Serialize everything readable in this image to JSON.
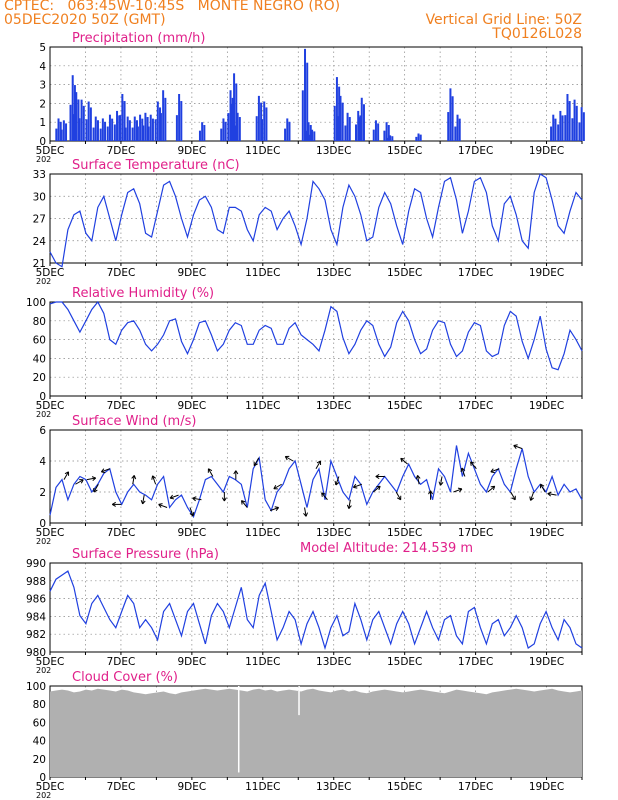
{
  "header": {
    "location": "CPTEC:   063:45W-10:45S   MONTE NEGRO (RO)",
    "date": "05DEC2020 50Z (GMT)",
    "grid_note": "Vertical Grid Line: 50Z",
    "code": "TQ0126L028"
  },
  "x_tick_labels": [
    "5DEC",
    "7DEC",
    "9DEC",
    "11DEC",
    "13DEC",
    "15DEC",
    "17DEC",
    "19DEC"
  ],
  "x_sub_label": "202",
  "colors": {
    "title": "#e0208a",
    "header": "#f08020",
    "line": "#2040e0",
    "cloud": "#b0b0b0",
    "wind_arrow": "#000000"
  },
  "chart_data": [
    {
      "type": "bar",
      "title": "Precipitation (mm/h)",
      "ylim": [
        0,
        5
      ],
      "yticks": [
        "0",
        "1",
        "2",
        "3",
        "4",
        "5"
      ],
      "peaks": [
        [
          0.15,
          1.2
        ],
        [
          0.3,
          1.1
        ],
        [
          0.55,
          3.5
        ],
        [
          0.65,
          2.6
        ],
        [
          0.8,
          2.2
        ],
        [
          1.0,
          2.1
        ],
        [
          1.2,
          1.3
        ],
        [
          1.4,
          1.2
        ],
        [
          1.6,
          1.4
        ],
        [
          1.8,
          1.6
        ],
        [
          1.95,
          2.5
        ],
        [
          2.1,
          1.3
        ],
        [
          2.3,
          1.3
        ],
        [
          2.45,
          1.4
        ],
        [
          2.6,
          1.5
        ],
        [
          2.75,
          1.4
        ],
        [
          2.95,
          2.1
        ],
        [
          3.1,
          2.7
        ],
        [
          3.55,
          2.5
        ],
        [
          4.2,
          1.0
        ],
        [
          4.8,
          1.2
        ],
        [
          5.0,
          2.7
        ],
        [
          5.1,
          3.6
        ],
        [
          5.2,
          1.5
        ],
        [
          5.8,
          2.4
        ],
        [
          5.95,
          2.1
        ],
        [
          6.6,
          1.2
        ],
        [
          7.1,
          4.9
        ],
        [
          7.2,
          1.0
        ],
        [
          7.3,
          0.6
        ],
        [
          8.0,
          3.4
        ],
        [
          8.1,
          2.4
        ],
        [
          8.3,
          1.5
        ],
        [
          8.6,
          1.6
        ],
        [
          8.7,
          2.3
        ],
        [
          9.1,
          1.1
        ],
        [
          9.4,
          1.0
        ],
        [
          9.5,
          0.3
        ],
        [
          10.3,
          0.4
        ],
        [
          11.2,
          2.8
        ],
        [
          11.4,
          1.4
        ],
        [
          14.1,
          1.4
        ],
        [
          14.3,
          1.6
        ],
        [
          14.5,
          2.5
        ],
        [
          14.7,
          2.2
        ],
        [
          14.9,
          1.8
        ]
      ],
      "xlim_days": [
        5,
        20
      ]
    },
    {
      "type": "line",
      "title": "Surface Temperature (nC)",
      "ylim": [
        21,
        33
      ],
      "yticks": [
        "21",
        "24",
        "27",
        "30",
        "33"
      ],
      "series": [
        {
          "values": [
            22.5,
            21.0,
            20.5,
            25.5,
            27.5,
            28.0,
            25.0,
            24.0,
            28.5,
            30.0,
            27.0,
            24.0,
            27.5,
            30.5,
            31.0,
            29.0,
            25.0,
            24.5,
            28.0,
            31.5,
            32.0,
            30.0,
            27.0,
            24.5,
            27.5,
            29.5,
            30.0,
            28.5,
            25.5,
            25.0,
            28.5,
            28.5,
            28.0,
            25.5,
            24.0,
            27.5,
            28.5,
            28.0,
            25.5,
            27.0,
            28.0,
            26.0,
            23.5,
            27.0,
            32.0,
            31.0,
            29.5,
            25.5,
            23.5,
            28.5,
            31.5,
            30.0,
            27.5,
            24.0,
            24.5,
            28.5,
            30.5,
            29.0,
            26.0,
            23.5,
            28.0,
            31.0,
            30.5,
            27.0,
            24.5,
            28.5,
            32.0,
            32.5,
            29.5,
            25.0,
            28.0,
            32.0,
            32.5,
            30.5,
            26.0,
            24.0,
            29.0,
            30.0,
            27.5,
            24.0,
            23.0,
            30.5,
            33.0,
            32.5,
            29.5,
            26.0,
            25.0,
            28.0,
            30.5,
            29.5
          ]
        }
      ]
    },
    {
      "type": "line",
      "title": "Relative Humidity (%)",
      "ylim": [
        0,
        100
      ],
      "yticks": [
        "0",
        "20",
        "40",
        "60",
        "80",
        "100"
      ],
      "series": [
        {
          "values": [
            98,
            100,
            100,
            92,
            80,
            68,
            80,
            92,
            100,
            88,
            60,
            55,
            70,
            78,
            80,
            70,
            55,
            48,
            55,
            65,
            80,
            82,
            58,
            45,
            60,
            78,
            80,
            65,
            48,
            55,
            70,
            78,
            75,
            55,
            55,
            70,
            75,
            72,
            55,
            55,
            72,
            78,
            65,
            60,
            55,
            48,
            70,
            95,
            90,
            62,
            45,
            55,
            70,
            80,
            75,
            55,
            42,
            52,
            78,
            90,
            80,
            60,
            45,
            50,
            70,
            80,
            78,
            55,
            42,
            48,
            68,
            78,
            75,
            48,
            42,
            45,
            75,
            90,
            85,
            58,
            40,
            60,
            85,
            50,
            30,
            28,
            45,
            70,
            60,
            48
          ]
        }
      ]
    },
    {
      "type": "line",
      "title": "Surface Wind (m/s)",
      "ylim": [
        0,
        6
      ],
      "yticks": [
        "0",
        "2",
        "4",
        "6"
      ],
      "series": [
        {
          "values": [
            0.5,
            2.3,
            2.8,
            1.5,
            2.5,
            3.0,
            2.8,
            2.0,
            2.5,
            3.2,
            3.5,
            2.0,
            1.2,
            2.0,
            2.5,
            2.0,
            1.8,
            1.5,
            2.5,
            3.0,
            1.0,
            1.5,
            1.8,
            1.0,
            0.4,
            1.5,
            2.8,
            3.0,
            2.5,
            2.0,
            3.0,
            2.8,
            2.5,
            1.0,
            3.5,
            4.2,
            1.5,
            0.8,
            2.0,
            2.5,
            3.5,
            4.0,
            2.5,
            1.0,
            2.8,
            3.5,
            1.5,
            4.0,
            3.0,
            2.0,
            1.5,
            3.0,
            2.5,
            1.2,
            2.0,
            2.5,
            3.0,
            2.5,
            2.0,
            3.0,
            3.8,
            3.0,
            2.5,
            2.8,
            1.5,
            3.5,
            3.0,
            2.0,
            5.0,
            3.0,
            4.5,
            3.5,
            2.5,
            2.0,
            3.0,
            3.5,
            2.5,
            2.0,
            3.5,
            4.8,
            3.0,
            2.0,
            2.5,
            2.0,
            3.0,
            1.8,
            2.5,
            2.0,
            2.2,
            1.5
          ]
        }
      ],
      "arrow_dirs_deg": [
        60,
        30,
        10,
        240,
        200,
        180,
        80,
        260,
        110,
        160,
        200,
        290,
        170,
        120,
        270,
        90,
        130,
        240,
        20,
        210,
        150,
        280,
        60,
        130,
        250,
        260,
        200,
        40,
        180,
        300,
        140,
        100,
        90,
        260,
        20,
        110,
        130,
        40,
        200,
        300,
        160,
        250,
        120,
        170
      ]
    },
    {
      "type": "line",
      "title": "Surface Pressure (hPa)",
      "annotation": "Model Altitude: 214.539 m",
      "ylim": [
        980,
        991
      ],
      "yticks": [
        "980",
        "982",
        "984",
        "986",
        "988",
        "990"
      ],
      "series": [
        {
          "values": [
            987.5,
            989.0,
            989.5,
            990.0,
            988.0,
            984.5,
            983.5,
            986.0,
            987.0,
            985.5,
            984.0,
            983.0,
            985.0,
            987.0,
            986.0,
            983.0,
            984.0,
            983.0,
            981.5,
            985.0,
            986.0,
            984.0,
            982.0,
            985.0,
            986.0,
            983.5,
            981.0,
            984.5,
            986.0,
            985.0,
            983.0,
            985.5,
            988.0,
            984.0,
            983.0,
            987.0,
            988.5,
            985.0,
            981.5,
            983.0,
            985.0,
            984.0,
            981.0,
            983.5,
            985.0,
            983.0,
            980.5,
            983.0,
            984.5,
            982.0,
            982.5,
            986.0,
            984.0,
            981.5,
            984.0,
            985.0,
            983.0,
            981.0,
            983.5,
            985.0,
            983.5,
            981.0,
            983.0,
            985.0,
            983.0,
            981.5,
            984.0,
            984.5,
            982.0,
            981.0,
            985.0,
            985.5,
            983.0,
            981.0,
            983.5,
            984.0,
            982.0,
            983.0,
            984.5,
            983.0,
            980.5,
            981.0,
            983.5,
            985.0,
            983.0,
            981.5,
            984.0,
            983.0,
            981.0,
            980.5
          ]
        }
      ]
    },
    {
      "type": "area",
      "title": "Cloud Cover (%)",
      "ylim": [
        0,
        100
      ],
      "yticks": [
        "0",
        "20",
        "40",
        "60",
        "80",
        "100"
      ],
      "series": [
        {
          "values": [
            94,
            95,
            96,
            95,
            93,
            94,
            96,
            95,
            97,
            96,
            95,
            94,
            96,
            95,
            93,
            92,
            91,
            92,
            93,
            94,
            92,
            91,
            93,
            94,
            95,
            96,
            97,
            96,
            95,
            96,
            97,
            96,
            95,
            94,
            96,
            97,
            95,
            96,
            94,
            95,
            96,
            95,
            94,
            96,
            97,
            95,
            94,
            93,
            95,
            96,
            94,
            95,
            93,
            92,
            94,
            95,
            96,
            95,
            94,
            93,
            94,
            95,
            96,
            95,
            94,
            93,
            92,
            94,
            96,
            95,
            94,
            93,
            92,
            91,
            93,
            94,
            95,
            96,
            97,
            96,
            95,
            94,
            95,
            96,
            97,
            95,
            94,
            93,
            94,
            95
          ]
        }
      ],
      "dips": [
        [
          5.3,
          5
        ],
        [
          7.0,
          68
        ]
      ]
    }
  ]
}
